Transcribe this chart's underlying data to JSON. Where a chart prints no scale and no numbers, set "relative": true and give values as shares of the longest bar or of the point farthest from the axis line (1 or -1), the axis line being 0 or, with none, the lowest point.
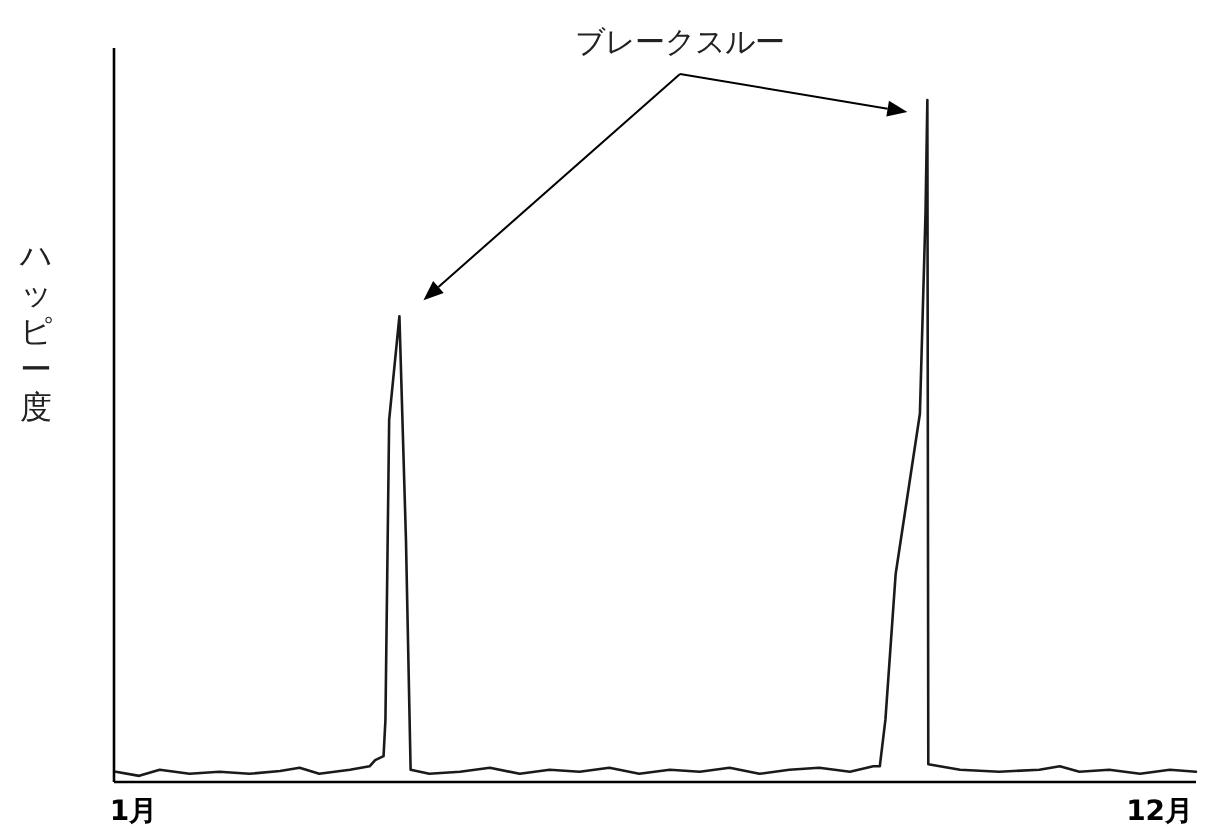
{
  "chart_data": {
    "type": "line",
    "relative": true,
    "ylabel": "ハッピー度",
    "annotations": [
      "ブレークスルー"
    ],
    "xlim": [
      0.79,
      12.39
    ],
    "xticks": [
      {
        "value": 1,
        "label": "1月"
      },
      {
        "value": 12,
        "label": "12月"
      }
    ],
    "x": [
      0.81,
      1.06,
      1.28,
      1.6,
      1.92,
      2.24,
      2.57,
      2.78,
      2.99,
      3.32,
      3.53,
      3.59,
      3.68,
      3.7,
      3.74,
      3.85,
      3.92,
      3.97,
      4.17,
      4.5,
      4.82,
      5.14,
      5.46,
      5.78,
      6.1,
      6.42,
      6.75,
      7.07,
      7.39,
      7.71,
      8.03,
      8.35,
      8.68,
      8.93,
      9.0,
      9.06,
      9.17,
      9.43,
      9.49,
      9.51,
      9.52,
      9.86,
      10.28,
      10.71,
      10.93,
      11.14,
      11.46,
      11.79,
      12.11,
      12.39
    ],
    "series": [
      {
        "color": "#1a1a1a",
        "values": [
          0.015,
          0.009,
          0.018,
          0.012,
          0.015,
          0.012,
          0.016,
          0.021,
          0.012,
          0.018,
          0.023,
          0.032,
          0.038,
          0.091,
          0.531,
          0.683,
          0.355,
          0.018,
          0.012,
          0.015,
          0.021,
          0.012,
          0.018,
          0.015,
          0.021,
          0.012,
          0.018,
          0.015,
          0.021,
          0.012,
          0.018,
          0.021,
          0.015,
          0.023,
          0.023,
          0.091,
          0.305,
          0.54,
          0.833,
          1,
          0.026,
          0.018,
          0.015,
          0.018,
          0.023,
          0.015,
          0.018,
          0.012,
          0.018,
          0.015
        ]
      }
    ]
  }
}
